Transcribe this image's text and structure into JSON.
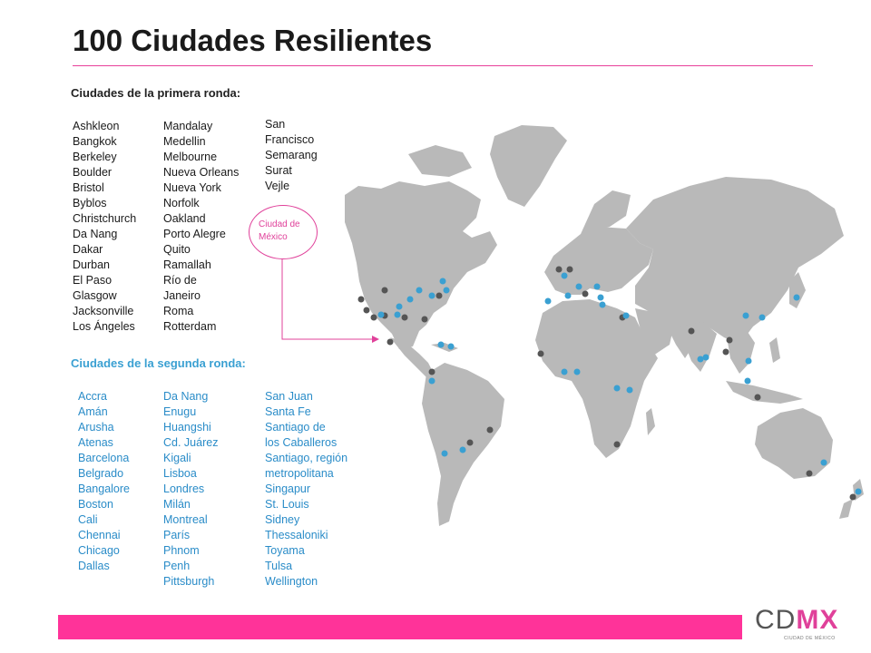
{
  "title": "100 Ciudades Resilientes",
  "first_round": {
    "heading": "Ciudades de la primera ronda:",
    "col1": [
      "Ashkleon",
      "Bangkok",
      "Berkeley",
      "Boulder",
      "Bristol",
      "Byblos",
      "Christchurch",
      "Da Nang",
      "Dakar",
      "Durban",
      "El Paso",
      "Glasgow",
      "Jacksonville",
      "Los Ángeles"
    ],
    "col2": [
      "Mandalay",
      "Medellin",
      "Melbourne",
      "Nueva Orleans",
      "Nueva York",
      "Norfolk",
      "Oakland",
      "Porto Alegre",
      "Quito",
      "Ramallah",
      "Río de",
      "Janeiro",
      "Roma",
      "Rotterdam"
    ],
    "col3": [
      "San",
      "Francisco",
      "Semarang",
      "Surat",
      "Vejle"
    ]
  },
  "second_round": {
    "heading": "Ciudades de la segunda ronda:",
    "col1": [
      "Accra",
      "Amán",
      "Arusha",
      "Atenas",
      "Barcelona",
      "Belgrado",
      "Bangalore",
      "Boston",
      "Cali",
      "Chennai",
      "Chicago",
      "Dallas"
    ],
    "col2": [
      "Da Nang",
      "Enugu",
      "Huangshi",
      "Cd. Juárez",
      "Kigali",
      "Lisboa",
      "Londres",
      "Milán",
      "Montreal",
      "París",
      "Phnom",
      "Penh",
      "Pittsburgh"
    ],
    "col3": [
      "San Juan",
      "Santa Fe",
      "Santiago de",
      "los Caballeros",
      "Santiago, región",
      "metropolitana",
      "Singapur",
      "St. Louis",
      "Sidney",
      "Thessaloniki",
      "Toyama",
      "Tulsa",
      "Wellington"
    ]
  },
  "callout": {
    "line1": "Ciudad de",
    "line2": "México"
  },
  "logo": {
    "text_cd": "CD",
    "text_mx": "MX",
    "subtitle": "CIUDAD DE MÉXICO"
  },
  "colors": {
    "accent": "#e8409a",
    "first_round_dot": "#555555",
    "second_round_dot": "#3aa0d2",
    "land": "#b8b8b8"
  }
}
